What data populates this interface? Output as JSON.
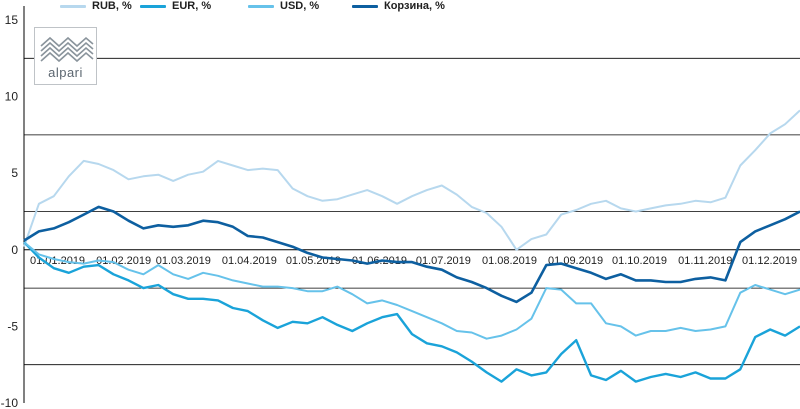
{
  "colors": {
    "RUB": "#b7d8ee",
    "EUR": "#1aa3d9",
    "USD": "#66c2ea",
    "Basket": "#0d5fa0",
    "zero_line": "#000000",
    "grid": "#000000"
  },
  "logo": {
    "text": "alpari",
    "icon": "alpari-waves-logo-icon"
  },
  "chart_data": {
    "type": "line",
    "ylim": [
      -10,
      15
    ],
    "yticks": [
      15,
      10,
      5,
      0,
      -5,
      -10
    ],
    "ytick_labels": [
      "15",
      "10",
      "5",
      "0",
      "-5",
      "-10"
    ],
    "grid": "horizontal lines at -7.5, -2.5, 2.5, 7.5, 12.5",
    "legend": "top",
    "x_start": "2019-01-01",
    "x_end": "2019-12-31",
    "x_tick_labels": [
      "01.01.2019",
      "01.02.2019",
      "01.03.2019",
      "01.04.2019",
      "01.05.2019",
      "01.06.2019",
      "01.07.2019",
      "01.08.2019",
      "01.09.2019",
      "01.10.2019",
      "01.11.2019",
      "01.12.2019"
    ],
    "x": [
      "2019-01-01",
      "2019-01-08",
      "2019-01-15",
      "2019-01-22",
      "2019-01-29",
      "2019-02-05",
      "2019-02-12",
      "2019-02-19",
      "2019-02-26",
      "2019-03-05",
      "2019-03-12",
      "2019-03-19",
      "2019-03-26",
      "2019-04-02",
      "2019-04-09",
      "2019-04-16",
      "2019-04-23",
      "2019-04-30",
      "2019-05-07",
      "2019-05-14",
      "2019-05-21",
      "2019-05-28",
      "2019-06-04",
      "2019-06-11",
      "2019-06-18",
      "2019-06-25",
      "2019-07-02",
      "2019-07-09",
      "2019-07-16",
      "2019-07-23",
      "2019-07-30",
      "2019-08-06",
      "2019-08-13",
      "2019-08-20",
      "2019-08-27",
      "2019-09-03",
      "2019-09-10",
      "2019-09-17",
      "2019-09-24",
      "2019-10-01",
      "2019-10-08",
      "2019-10-15",
      "2019-10-22",
      "2019-10-29",
      "2019-11-05",
      "2019-11-12",
      "2019-11-19",
      "2019-11-26",
      "2019-12-03",
      "2019-12-10",
      "2019-12-17",
      "2019-12-24",
      "2019-12-31"
    ],
    "series": [
      {
        "name": "RUB, %",
        "key": "RUB",
        "values": [
          0.2,
          3.0,
          3.5,
          4.8,
          5.8,
          5.6,
          5.2,
          4.6,
          4.8,
          4.9,
          4.5,
          4.9,
          5.1,
          5.8,
          5.5,
          5.2,
          5.3,
          5.2,
          4.0,
          3.5,
          3.2,
          3.3,
          3.6,
          3.9,
          3.5,
          3.0,
          3.5,
          3.9,
          4.2,
          3.6,
          2.8,
          2.4,
          1.5,
          0.0,
          0.7,
          1.0,
          2.3,
          2.6,
          3.0,
          3.2,
          2.7,
          2.5,
          2.7,
          2.9,
          3.0,
          3.2,
          3.1,
          3.4,
          5.5,
          6.5,
          7.6,
          8.2,
          9.1
        ]
      },
      {
        "name": "EUR, %",
        "key": "EUR",
        "values": [
          0.5,
          -0.5,
          -1.2,
          -1.5,
          -1.1,
          -1.0,
          -1.6,
          -2.0,
          -2.5,
          -2.3,
          -2.9,
          -3.2,
          -3.2,
          -3.3,
          -3.8,
          -4.0,
          -4.6,
          -5.1,
          -4.7,
          -4.8,
          -4.4,
          -4.9,
          -5.3,
          -4.8,
          -4.4,
          -4.2,
          -5.5,
          -6.1,
          -6.3,
          -6.7,
          -7.3,
          -8.0,
          -8.6,
          -7.8,
          -8.2,
          -8.0,
          -6.8,
          -5.9,
          -8.2,
          -8.5,
          -7.9,
          -8.6,
          -8.3,
          -8.1,
          -8.3,
          -8.0,
          -8.4,
          -8.4,
          -7.8,
          -5.7,
          -5.2,
          -5.6,
          -5.0
        ]
      },
      {
        "name": "USD, %",
        "key": "USD",
        "values": [
          0.5,
          -0.3,
          -0.6,
          -0.8,
          -0.9,
          -0.7,
          -0.8,
          -1.3,
          -1.6,
          -1.0,
          -1.6,
          -1.9,
          -1.5,
          -1.7,
          -2.0,
          -2.2,
          -2.4,
          -2.4,
          -2.5,
          -2.7,
          -2.7,
          -2.4,
          -2.9,
          -3.5,
          -3.3,
          -3.6,
          -4.0,
          -4.4,
          -4.8,
          -5.3,
          -5.4,
          -5.8,
          -5.6,
          -5.2,
          -4.5,
          -2.5,
          -2.6,
          -3.5,
          -3.5,
          -4.8,
          -5.0,
          -5.6,
          -5.3,
          -5.3,
          -5.1,
          -5.3,
          -5.2,
          -5.0,
          -2.8,
          -2.3,
          -2.6,
          -2.9,
          -2.6
        ]
      },
      {
        "name": "Корзина, %",
        "key": "Basket",
        "values": [
          0.6,
          1.2,
          1.4,
          1.8,
          2.3,
          2.8,
          2.5,
          1.9,
          1.4,
          1.6,
          1.5,
          1.6,
          1.9,
          1.8,
          1.5,
          0.9,
          0.8,
          0.5,
          0.2,
          -0.2,
          -0.5,
          -0.6,
          -0.7,
          -0.9,
          -0.7,
          -0.8,
          -0.8,
          -1.1,
          -1.3,
          -1.8,
          -2.1,
          -2.5,
          -3.0,
          -3.4,
          -2.8,
          -1.0,
          -0.9,
          -1.2,
          -1.5,
          -1.9,
          -1.6,
          -2.0,
          -2.0,
          -2.1,
          -2.1,
          -1.9,
          -1.8,
          -2.0,
          0.5,
          1.2,
          1.6,
          2.0,
          2.5
        ]
      }
    ]
  }
}
